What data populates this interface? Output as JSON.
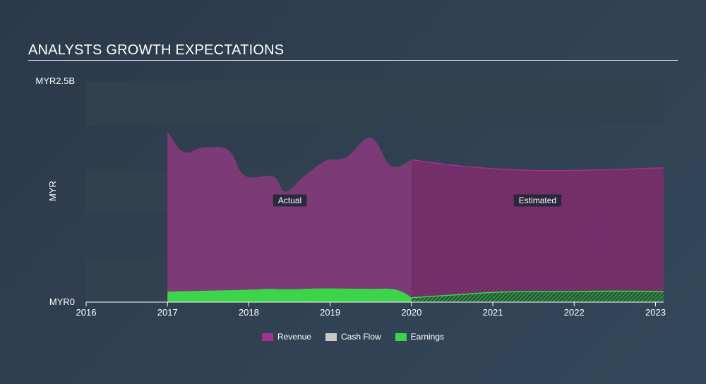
{
  "title": "ANALYSTS GROWTH EXPECTATIONS",
  "colors": {
    "revenue": "#a1338a",
    "cashflow": "#c8c8c8",
    "earnings": "#3bd44a",
    "band": "#33414f"
  },
  "chart_data": {
    "type": "area",
    "title": "ANALYSTS GROWTH EXPECTATIONS",
    "ylabel": "MYR",
    "ylim": [
      0,
      2.5
    ],
    "xlim": [
      2016,
      2023.1
    ],
    "y_tick_labels": [
      "MYR0",
      "MYR2.5B"
    ],
    "x_ticks": [
      2016,
      2017,
      2018,
      2019,
      2020,
      2021,
      2022,
      2023
    ],
    "x_tick_labels": [
      "2016",
      "2017",
      "2018",
      "2019",
      "2020",
      "2021",
      "2022",
      "2023"
    ],
    "forecast_start": 2020,
    "region_labels": {
      "actual": "Actual",
      "estimated": "Estimated"
    },
    "series": [
      {
        "name": "Revenue",
        "x": [
          2017.0,
          2017.2,
          2017.45,
          2017.75,
          2017.95,
          2018.3,
          2018.45,
          2018.7,
          2018.95,
          2019.2,
          2019.5,
          2019.75,
          2020.0,
          2020.5,
          2021.0,
          2021.5,
          2022.0,
          2022.5,
          2023.1
        ],
        "values": [
          1.93,
          1.7,
          1.75,
          1.72,
          1.43,
          1.42,
          1.25,
          1.44,
          1.6,
          1.64,
          1.86,
          1.54,
          1.61,
          1.55,
          1.51,
          1.49,
          1.49,
          1.5,
          1.52
        ]
      },
      {
        "name": "Earnings",
        "x": [
          2017.0,
          2017.5,
          2018.0,
          2018.25,
          2018.5,
          2018.9,
          2019.5,
          2019.75,
          2019.9,
          2020.0,
          2020.5,
          2021.0,
          2021.5,
          2022.0,
          2022.5,
          2023.1
        ],
        "values": [
          0.12,
          0.13,
          0.14,
          0.15,
          0.145,
          0.155,
          0.15,
          0.15,
          0.11,
          0.05,
          0.08,
          0.11,
          0.12,
          0.12,
          0.125,
          0.12
        ]
      }
    ],
    "legend": [
      {
        "name": "Revenue",
        "color": "#a1338a"
      },
      {
        "name": "Cash Flow",
        "color": "#c8c8c8"
      },
      {
        "name": "Earnings",
        "color": "#3bd44a"
      }
    ]
  }
}
